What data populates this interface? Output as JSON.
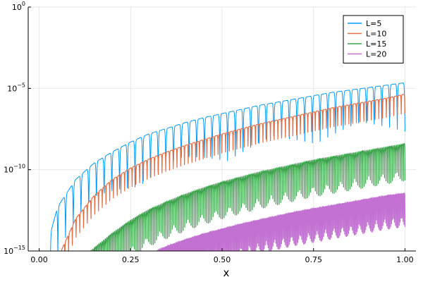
{
  "chart_data": {
    "type": "line",
    "title": "",
    "xlabel": "x",
    "ylabel": "",
    "xlim": [
      -0.03,
      1.03
    ],
    "ylim_log10": [
      -15,
      0
    ],
    "yscale": "log",
    "grid": true,
    "legend_position": "top-right",
    "x_ticks": [
      0.0,
      0.25,
      0.5,
      0.75,
      1.0
    ],
    "x_tick_labels": [
      "0.00",
      "0.25",
      "0.50",
      "0.75",
      "1.00"
    ],
    "y_ticks": [
      {
        "exponent": -15,
        "base": "10",
        "sup": "−15"
      },
      {
        "exponent": -10,
        "base": "10",
        "sup": "−10"
      },
      {
        "exponent": -5,
        "base": "10",
        "sup": "−5"
      },
      {
        "exponent": 0,
        "base": "10",
        "sup": "0"
      }
    ],
    "series": [
      {
        "name": "L=5",
        "color": "#009AFA",
        "envelope_x": [
          0.03,
          0.05,
          0.1,
          0.15,
          0.2,
          0.25,
          0.3,
          0.35,
          0.4,
          0.45,
          0.5,
          0.55,
          0.6,
          0.65,
          0.7,
          0.75,
          0.8,
          0.85,
          0.9,
          0.95,
          1.0
        ],
        "envelope_log10": [
          -14.0,
          -12.3,
          -10.6,
          -9.6,
          -8.9,
          -8.3,
          -7.8,
          -7.45,
          -7.1,
          -6.8,
          -6.55,
          -6.3,
          -6.05,
          -5.85,
          -5.65,
          -5.45,
          -5.25,
          -5.1,
          -4.95,
          -4.8,
          -4.65
        ],
        "oscillations": 46,
        "dip_depth": 3.0
      },
      {
        "name": "L=10",
        "color": "#E26F46",
        "envelope_x": [
          0.06,
          0.1,
          0.15,
          0.2,
          0.25,
          0.3,
          0.35,
          0.4,
          0.45,
          0.5,
          0.55,
          0.6,
          0.65,
          0.7,
          0.75,
          0.8,
          0.85,
          0.9,
          0.95,
          1.0
        ],
        "envelope_log10": [
          -15.0,
          -13.0,
          -11.6,
          -10.6,
          -9.9,
          -9.35,
          -8.9,
          -8.5,
          -8.15,
          -7.8,
          -7.5,
          -7.2,
          -6.95,
          -6.7,
          -6.45,
          -6.2,
          -6.0,
          -5.8,
          -5.6,
          -5.35
        ],
        "oscillations": 92,
        "dip_depth": 1.2
      },
      {
        "name": "L=15",
        "color": "#3DA44D",
        "envelope_x": [
          0.14,
          0.2,
          0.25,
          0.3,
          0.35,
          0.4,
          0.45,
          0.5,
          0.55,
          0.6,
          0.65,
          0.7,
          0.75,
          0.8,
          0.85,
          0.9,
          0.95,
          1.0
        ],
        "envelope_log10": [
          -15.0,
          -13.9,
          -13.1,
          -12.45,
          -11.95,
          -11.5,
          -11.1,
          -10.75,
          -10.45,
          -10.15,
          -9.9,
          -9.65,
          -9.4,
          -9.2,
          -9.0,
          -8.8,
          -8.6,
          -8.4
        ],
        "oscillations": 200,
        "dip_depth": 1.6
      },
      {
        "name": "L=20",
        "color": "#C271D2",
        "envelope_x": [
          0.32,
          0.35,
          0.4,
          0.45,
          0.5,
          0.55,
          0.6,
          0.65,
          0.7,
          0.75,
          0.8,
          0.85,
          0.9,
          0.95,
          1.0
        ],
        "envelope_log10": [
          -15.0,
          -14.7,
          -14.3,
          -13.95,
          -13.65,
          -13.35,
          -13.1,
          -12.85,
          -12.6,
          -12.4,
          -12.2,
          -12.0,
          -11.8,
          -11.6,
          -11.45
        ],
        "oscillations": 260,
        "dip_depth": 1.4
      }
    ]
  }
}
